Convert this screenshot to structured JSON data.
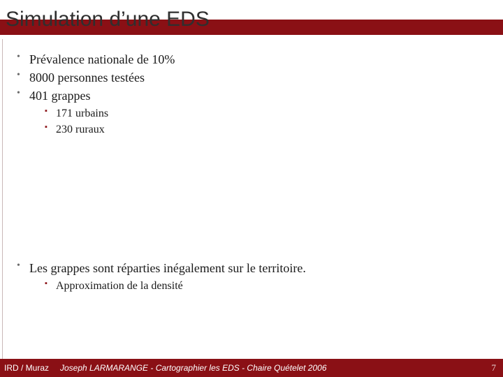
{
  "colors": {
    "title_text": "#2f2f2f",
    "title_bar_bg": "#8a1015",
    "bullet_l1": "#6b6b6b",
    "bullet_l2": "#8a1015",
    "body_text": "#1a1a1a",
    "footer_bg": "#8a1015",
    "footer_text": "#ffffff",
    "footer_pagenum": "#e9d9d9"
  },
  "title": "Simulation d’une EDS",
  "bullets_top": [
    "Prévalence nationale de 10%",
    "8000 personnes testées",
    "401 grappes"
  ],
  "sub_top": [
    "171 urbains",
    "230 ruraux"
  ],
  "bullets_bottom": [
    "Les grappes sont réparties inégalement sur le territoire."
  ],
  "sub_bottom": [
    "Approximation de la densité"
  ],
  "footer": {
    "left": "IRD / Muraz",
    "center": "Joseph LARMARANGE - Cartographier les EDS - Chaire Quételet 2006",
    "page": "7"
  }
}
